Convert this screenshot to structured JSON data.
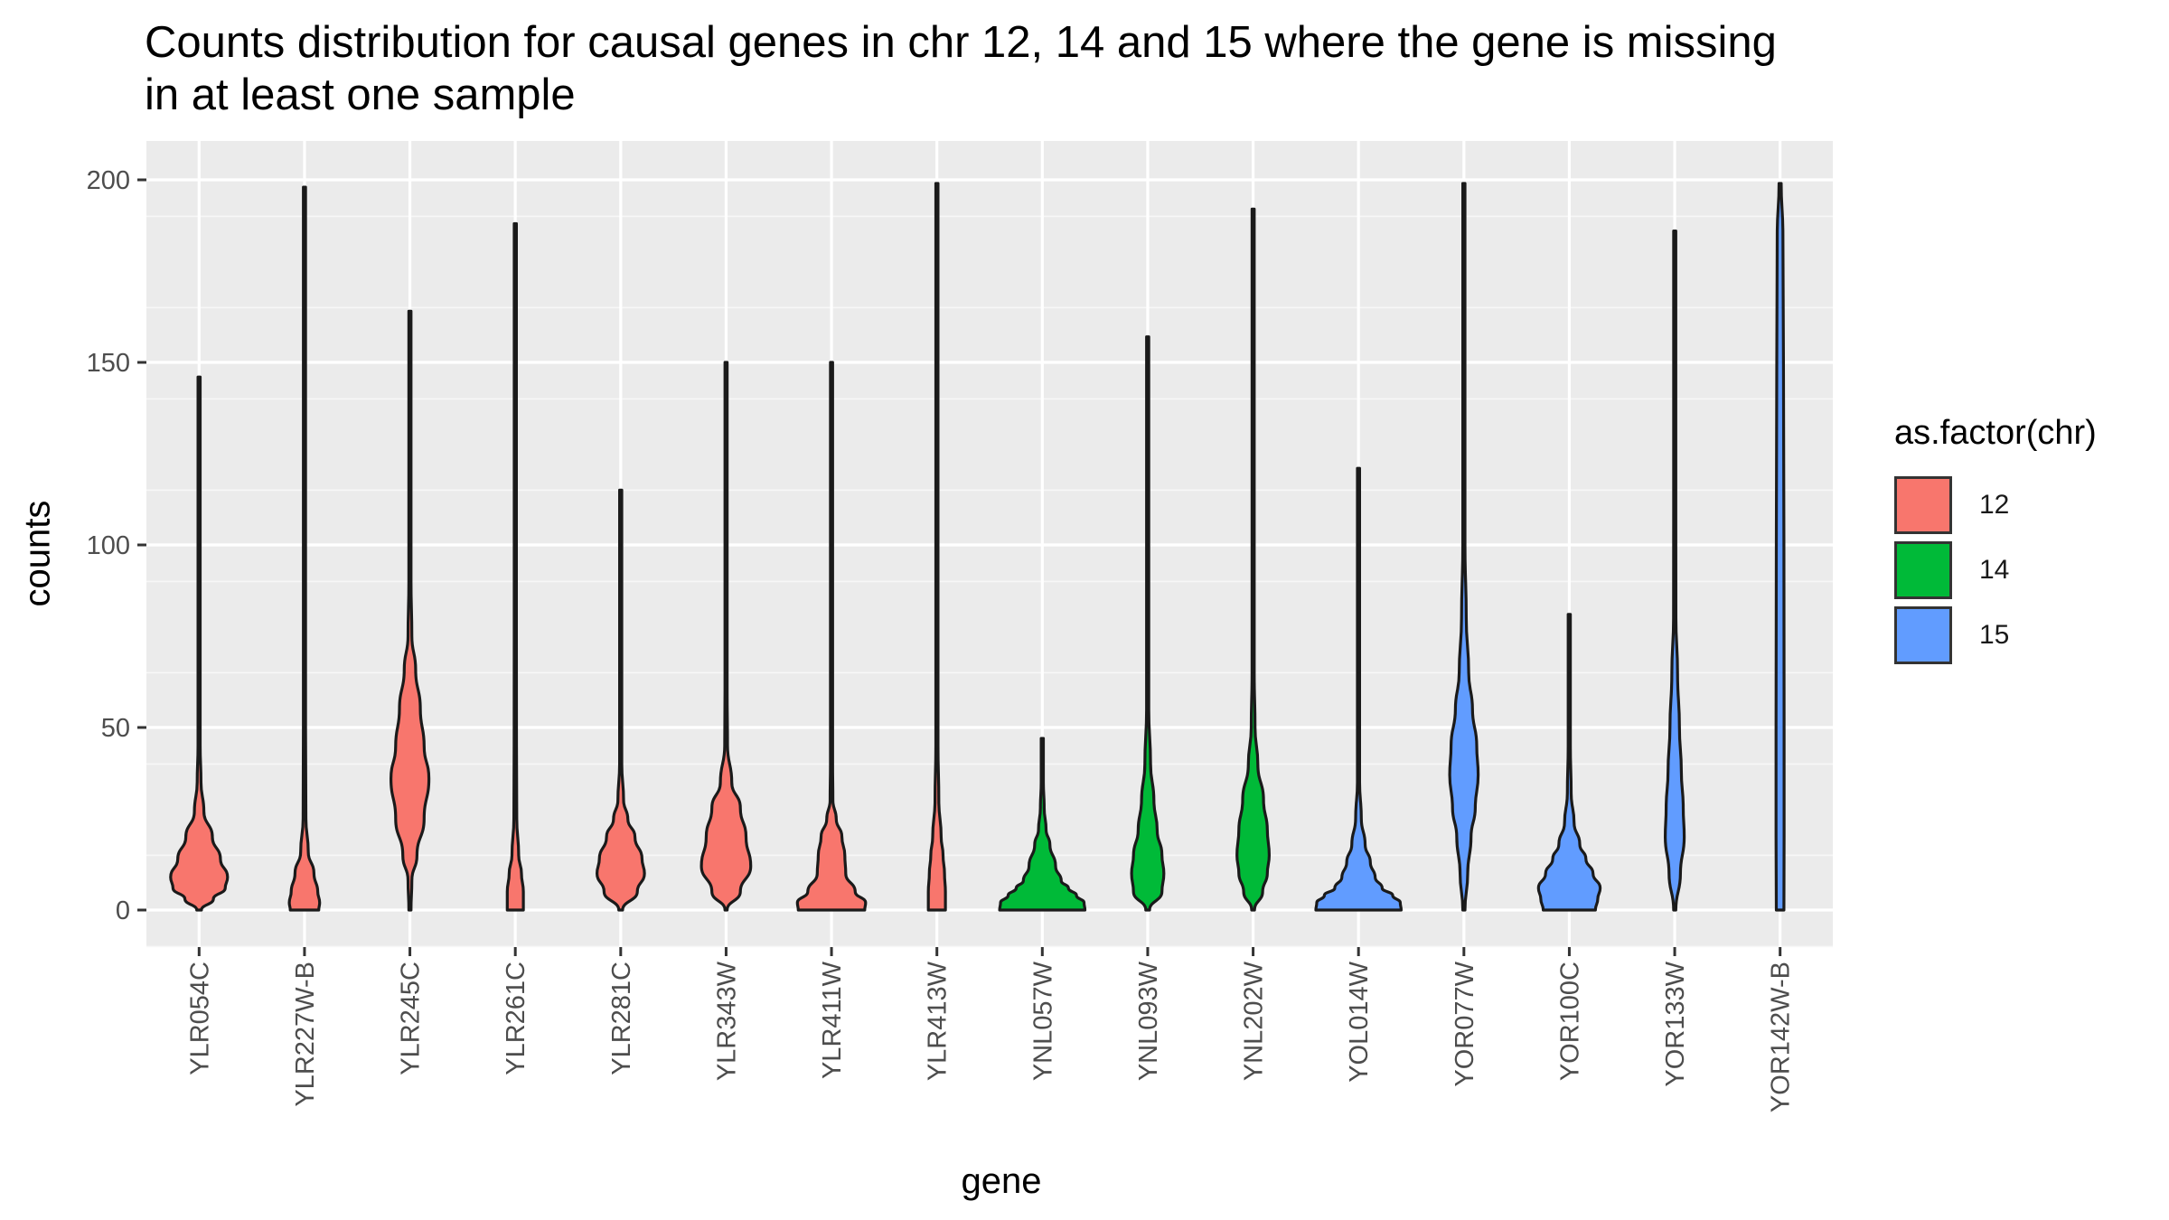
{
  "chart_data": {
    "type": "violin",
    "title": "Counts distribution for causal genes in chr 12, 14 and 15 where the gene is missing\n in at least one sample",
    "xlabel": "gene",
    "ylabel": "counts",
    "ylim": [
      -10,
      210
    ],
    "yticks": [
      0,
      50,
      100,
      150,
      200
    ],
    "grid": true,
    "legend": {
      "title": "as.factor(chr)",
      "position": "right",
      "items": [
        {
          "label": "12",
          "color": "#F8766D"
        },
        {
          "label": "14",
          "color": "#00BA38"
        },
        {
          "label": "15",
          "color": "#619CFF"
        }
      ]
    },
    "categories": [
      "YLR054C",
      "YLR227W-B",
      "YLR245C",
      "YLR261C",
      "YLR281C",
      "YLR343W",
      "YLR411W",
      "YLR413W",
      "YNL057W",
      "YNL093W",
      "YNL202W",
      "YOL014W",
      "YOR077W",
      "YOR100C",
      "YOR133W",
      "YOR142W-B"
    ],
    "violins": [
      {
        "gene": "YLR054C",
        "chr": "12",
        "min": 0,
        "max": 146,
        "profile": [
          [
            0,
            0.05
          ],
          [
            3,
            0.3
          ],
          [
            6,
            0.55
          ],
          [
            9,
            0.6
          ],
          [
            14,
            0.45
          ],
          [
            20,
            0.28
          ],
          [
            27,
            0.1
          ],
          [
            35,
            0.04
          ],
          [
            45,
            0.02
          ],
          [
            70,
            0.01
          ],
          [
            146,
            0.005
          ]
        ]
      },
      {
        "gene": "YLR227W-B",
        "chr": "12",
        "min": 0,
        "max": 198,
        "profile": [
          [
            0,
            0.3
          ],
          [
            2,
            0.32
          ],
          [
            5,
            0.28
          ],
          [
            10,
            0.2
          ],
          [
            16,
            0.08
          ],
          [
            25,
            0.03
          ],
          [
            50,
            0.012
          ],
          [
            110,
            0.01
          ],
          [
            198,
            0.004
          ]
        ]
      },
      {
        "gene": "YLR245C",
        "chr": "12",
        "min": 0,
        "max": 164,
        "profile": [
          [
            0,
            0.005
          ],
          [
            8,
            0.04
          ],
          [
            15,
            0.15
          ],
          [
            25,
            0.3
          ],
          [
            36,
            0.4
          ],
          [
            45,
            0.3
          ],
          [
            55,
            0.22
          ],
          [
            66,
            0.12
          ],
          [
            75,
            0.04
          ],
          [
            90,
            0.015
          ],
          [
            164,
            0.005
          ]
        ]
      },
      {
        "gene": "YLR261C",
        "chr": "12",
        "min": 0,
        "max": 188,
        "profile": [
          [
            0,
            0.17
          ],
          [
            5,
            0.17
          ],
          [
            10,
            0.13
          ],
          [
            15,
            0.07
          ],
          [
            25,
            0.03
          ],
          [
            45,
            0.025
          ],
          [
            75,
            0.02
          ],
          [
            100,
            0.008
          ],
          [
            188,
            0.004
          ]
        ]
      },
      {
        "gene": "YLR281C",
        "chr": "12",
        "min": 0,
        "max": 115,
        "profile": [
          [
            0,
            0.04
          ],
          [
            5,
            0.35
          ],
          [
            10,
            0.5
          ],
          [
            14,
            0.45
          ],
          [
            20,
            0.3
          ],
          [
            25,
            0.15
          ],
          [
            30,
            0.06
          ],
          [
            40,
            0.02
          ],
          [
            115,
            0.005
          ]
        ]
      },
      {
        "gene": "YLR343W",
        "chr": "12",
        "min": 0,
        "max": 150,
        "profile": [
          [
            0,
            0.02
          ],
          [
            5,
            0.3
          ],
          [
            12,
            0.52
          ],
          [
            20,
            0.42
          ],
          [
            28,
            0.3
          ],
          [
            35,
            0.12
          ],
          [
            45,
            0.03
          ],
          [
            60,
            0.015
          ],
          [
            150,
            0.005
          ]
        ]
      },
      {
        "gene": "YLR411W",
        "chr": "12",
        "min": 0,
        "max": 150,
        "profile": [
          [
            0,
            0.7
          ],
          [
            2,
            0.72
          ],
          [
            5,
            0.5
          ],
          [
            10,
            0.3
          ],
          [
            15,
            0.28
          ],
          [
            20,
            0.22
          ],
          [
            25,
            0.1
          ],
          [
            30,
            0.03
          ],
          [
            40,
            0.012
          ],
          [
            150,
            0.004
          ]
        ]
      },
      {
        "gene": "YLR413W",
        "chr": "12",
        "min": 0,
        "max": 199,
        "profile": [
          [
            0,
            0.18
          ],
          [
            5,
            0.18
          ],
          [
            10,
            0.16
          ],
          [
            15,
            0.13
          ],
          [
            20,
            0.09
          ],
          [
            30,
            0.04
          ],
          [
            45,
            0.015
          ],
          [
            199,
            0.004
          ]
        ]
      },
      {
        "gene": "YNL057W",
        "chr": "14",
        "min": 0,
        "max": 47,
        "profile": [
          [
            0,
            0.9
          ],
          [
            2,
            0.88
          ],
          [
            4,
            0.72
          ],
          [
            6,
            0.55
          ],
          [
            8,
            0.4
          ],
          [
            12,
            0.28
          ],
          [
            18,
            0.16
          ],
          [
            22,
            0.08
          ],
          [
            28,
            0.04
          ],
          [
            35,
            0.02
          ],
          [
            47,
            0.004
          ]
        ]
      },
      {
        "gene": "YNL093W",
        "chr": "14",
        "min": 0,
        "max": 157,
        "profile": [
          [
            0,
            0.04
          ],
          [
            5,
            0.3
          ],
          [
            10,
            0.34
          ],
          [
            15,
            0.3
          ],
          [
            22,
            0.2
          ],
          [
            30,
            0.13
          ],
          [
            40,
            0.06
          ],
          [
            55,
            0.02
          ],
          [
            157,
            0.004
          ]
        ]
      },
      {
        "gene": "YNL202W",
        "chr": "14",
        "min": 0,
        "max": 192,
        "profile": [
          [
            0,
            0.03
          ],
          [
            5,
            0.2
          ],
          [
            10,
            0.3
          ],
          [
            15,
            0.34
          ],
          [
            22,
            0.3
          ],
          [
            30,
            0.22
          ],
          [
            40,
            0.1
          ],
          [
            50,
            0.04
          ],
          [
            65,
            0.012
          ],
          [
            192,
            0.004
          ]
        ]
      },
      {
        "gene": "YOL014W",
        "chr": "15",
        "min": 0,
        "max": 121,
        "profile": [
          [
            0,
            0.9
          ],
          [
            2,
            0.88
          ],
          [
            4,
            0.72
          ],
          [
            6,
            0.5
          ],
          [
            9,
            0.35
          ],
          [
            13,
            0.25
          ],
          [
            18,
            0.14
          ],
          [
            25,
            0.06
          ],
          [
            35,
            0.02
          ],
          [
            121,
            0.004
          ]
        ]
      },
      {
        "gene": "YOR077W",
        "chr": "15",
        "min": 0,
        "max": 199,
        "profile": [
          [
            0,
            0.01
          ],
          [
            10,
            0.08
          ],
          [
            20,
            0.15
          ],
          [
            28,
            0.24
          ],
          [
            37,
            0.3
          ],
          [
            45,
            0.27
          ],
          [
            55,
            0.18
          ],
          [
            65,
            0.1
          ],
          [
            80,
            0.05
          ],
          [
            100,
            0.018
          ],
          [
            199,
            0.004
          ]
        ]
      },
      {
        "gene": "YOR100C",
        "chr": "15",
        "min": 0,
        "max": 81,
        "profile": [
          [
            0,
            0.55
          ],
          [
            3,
            0.6
          ],
          [
            6,
            0.65
          ],
          [
            10,
            0.5
          ],
          [
            14,
            0.35
          ],
          [
            18,
            0.22
          ],
          [
            24,
            0.1
          ],
          [
            32,
            0.04
          ],
          [
            45,
            0.015
          ],
          [
            81,
            0.004
          ]
        ]
      },
      {
        "gene": "YOR133W",
        "chr": "15",
        "min": 0,
        "max": 186,
        "profile": [
          [
            0,
            0.01
          ],
          [
            10,
            0.12
          ],
          [
            20,
            0.2
          ],
          [
            28,
            0.18
          ],
          [
            38,
            0.14
          ],
          [
            50,
            0.1
          ],
          [
            65,
            0.06
          ],
          [
            80,
            0.025
          ],
          [
            110,
            0.01
          ],
          [
            186,
            0.004
          ]
        ]
      },
      {
        "gene": "YOR142W-B",
        "chr": "15",
        "min": 0,
        "max": 199,
        "profile": [
          [
            0,
            0.08
          ],
          [
            20,
            0.085
          ],
          [
            50,
            0.085
          ],
          [
            100,
            0.08
          ],
          [
            150,
            0.07
          ],
          [
            185,
            0.06
          ],
          [
            199,
            0.02
          ]
        ]
      }
    ]
  }
}
